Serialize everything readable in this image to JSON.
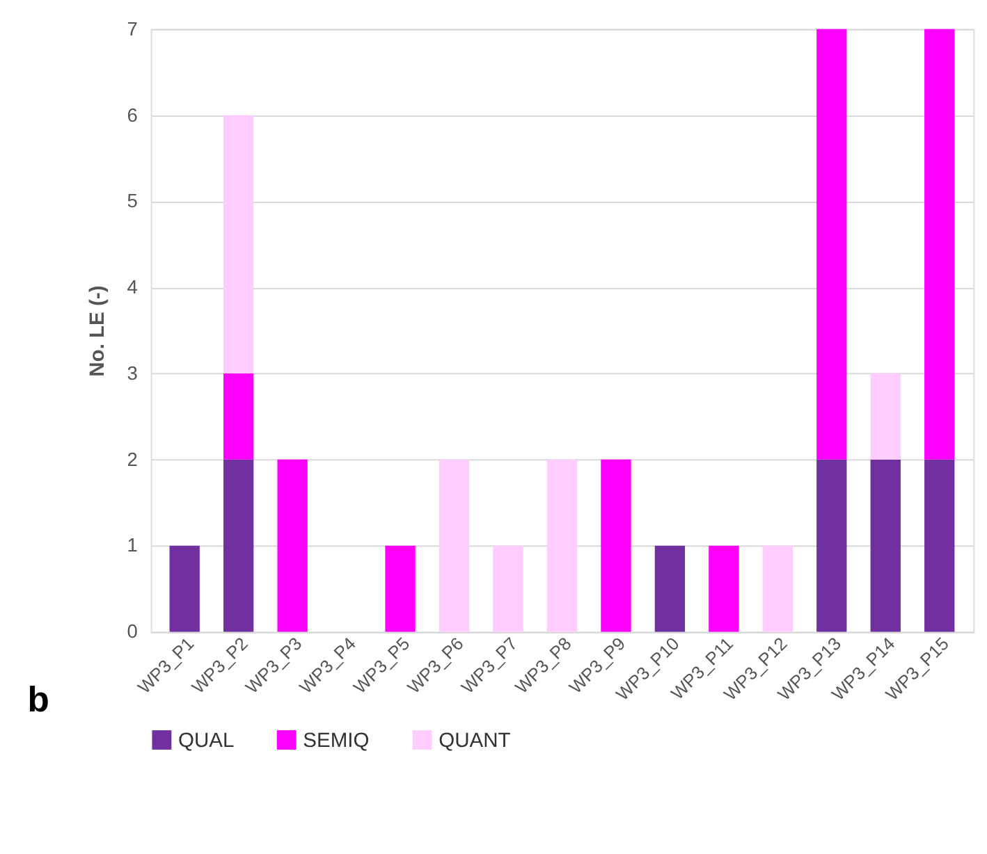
{
  "chart_data": {
    "type": "bar",
    "stacked": true,
    "ylabel": "No. LE (-)",
    "categories": [
      "WP3_P1",
      "WP3_P2",
      "WP3_P3",
      "WP3_P4",
      "WP3_P5",
      "WP3_P6",
      "WP3_P7",
      "WP3_P8",
      "WP3_P9",
      "WP3_P10",
      "WP3_P11",
      "WP3_P12",
      "WP3_P13",
      "WP3_P14",
      "WP3_P15"
    ],
    "series": [
      {
        "name": "QUAL",
        "color": "#7030a0",
        "values": [
          1,
          2,
          0,
          0,
          0,
          0,
          0,
          0,
          0,
          1,
          0,
          0,
          2,
          2,
          2
        ]
      },
      {
        "name": "SEMIQ",
        "color": "#ff00ff",
        "values": [
          0,
          1,
          2,
          0,
          1,
          0,
          0,
          0,
          2,
          0,
          1,
          0,
          5,
          0,
          5
        ]
      },
      {
        "name": "QUANT",
        "color": "#ffccff",
        "values": [
          0,
          3,
          0,
          0,
          0,
          2,
          1,
          2,
          0,
          0,
          0,
          1,
          0,
          1,
          0
        ]
      }
    ],
    "ylim": [
      0,
      7
    ],
    "yticks": [
      0,
      1,
      2,
      3,
      4,
      5,
      6,
      7
    ],
    "grid": "y",
    "legend": "bottom",
    "annotations": [
      "b"
    ]
  }
}
